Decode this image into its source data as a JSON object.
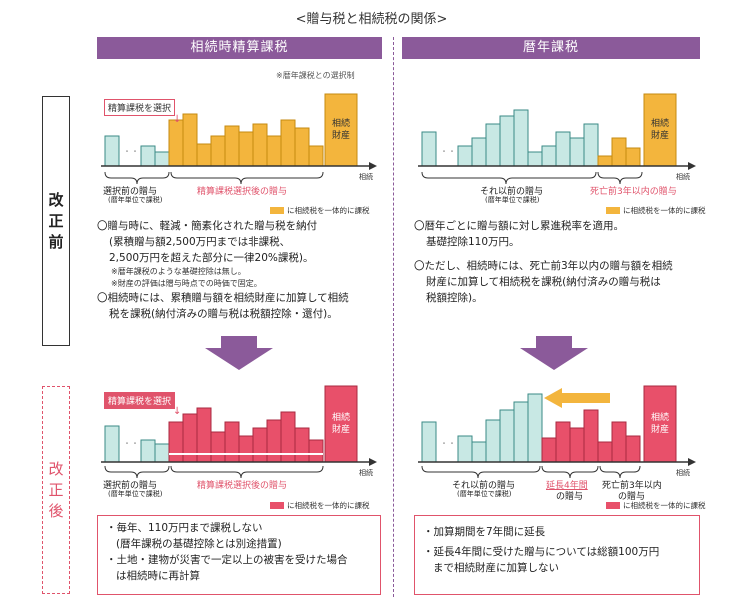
{
  "title": "<贈与税と相続税の関係>",
  "left_header": "相続時精算課税",
  "right_header": "暦年課税",
  "select_note": "※暦年課税との選択制",
  "side_before": [
    "改",
    "正",
    "前"
  ],
  "side_after": [
    "改",
    "正",
    "後"
  ],
  "callout_select": "精算課税を選択",
  "estate_label": [
    "相続",
    "財産"
  ],
  "axis_label": "相続",
  "left_before": {
    "brace1": "選択前の贈与",
    "brace1_sub": "(暦年単位で課税)",
    "brace2": "精算課税選択後の贈与",
    "legend": "に相続税を一体的に課税",
    "bullets": [
      "〇贈与時に、軽減・簡素化された贈与税を納付",
      "(累積贈与額2,500万円までは非課税、",
      "2,500万円を超えた部分に一律20%課税)。"
    ],
    "notes": [
      "※暦年課税のような基礎控除は無し。",
      "※財産の評価は贈与時点での時価で固定。"
    ],
    "bullet2": [
      "〇相続時には、累積贈与額を相続財産に加算して相続",
      "税を課税(納付済みの贈与税は税額控除・還付)。"
    ]
  },
  "right_before": {
    "brace1": "それ以前の贈与",
    "brace1_sub": "(暦年単位で課税)",
    "brace2": "死亡前3年以内の贈与",
    "legend": "に相続税を一体的に課税",
    "bullets": [
      "〇暦年ごとに贈与額に対し累進税率を適用。",
      "基礎控除110万円。"
    ],
    "bullet2": [
      "〇ただし、相続時には、死亡前3年以内の贈与額を相続",
      "財産に加算して相続税を課税(納付済みの贈与税は",
      "税額控除)。"
    ]
  },
  "left_after": {
    "brace1": "選択前の贈与",
    "brace1_sub": "(暦年単位で課税)",
    "brace2": "精算課税選択後の贈与",
    "legend": "に相続税を一体的に課税",
    "bullets": [
      "・毎年、110万円まで課税しない",
      "(暦年課税の基礎控除とは別途措置)",
      "・土地・建物が災害で一定以上の被害を受けた場合",
      "は相続時に再計算"
    ]
  },
  "right_after": {
    "brace1": "それ以前の贈与",
    "brace1_sub": "(暦年単位で課税)",
    "brace2": "延長4年間",
    "brace2_sub": "の贈与",
    "brace3": "死亡前3年以内",
    "brace3_sub": "の贈与",
    "legend": "に相続税を一体的に課税",
    "bullets": [
      "・加算期間を7年間に延長",
      "・延長4年間に受けた贈与については総額100万円",
      "まで相続財産に加算しない"
    ]
  },
  "colors": {
    "purple": "#8b5a9a",
    "teal": "#c8e8e4",
    "teal_stroke": "#3a8a86",
    "orange": "#f3b53d",
    "pink": "#e8506a",
    "pink_light": "#e8506a"
  }
}
